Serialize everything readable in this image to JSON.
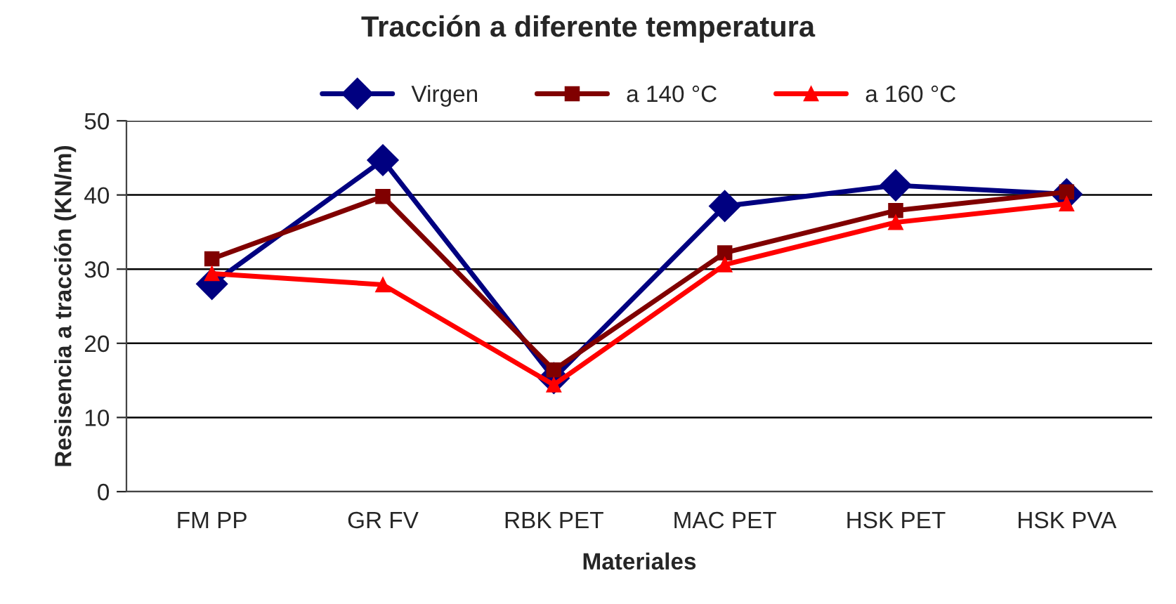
{
  "chart_data": {
    "type": "line",
    "title": "Tracción a diferente temperatura",
    "xlabel": "Materiales",
    "ylabel": "Resisencia a tracción (KN/m)",
    "categories": [
      "FM PP",
      "GR FV",
      "RBK PET",
      "MAC PET",
      "HSK PET",
      "HSK PVA"
    ],
    "series": [
      {
        "name": "Virgen",
        "color": "#000080",
        "marker": "diamond",
        "values": [
          28.0,
          44.7,
          15.3,
          38.5,
          41.3,
          40.1
        ]
      },
      {
        "name": "a 140 °C",
        "color": "#800000",
        "marker": "square",
        "values": [
          31.4,
          39.8,
          16.4,
          32.2,
          37.9,
          40.4
        ]
      },
      {
        "name": "a 160 °C",
        "color": "#ff0000",
        "marker": "triangle",
        "values": [
          29.4,
          27.9,
          14.4,
          30.6,
          36.3,
          38.8
        ]
      }
    ],
    "ylim": [
      0,
      50
    ],
    "yticks": [
      0,
      10,
      20,
      30,
      40,
      50
    ],
    "grid": "y",
    "legend": "top"
  }
}
